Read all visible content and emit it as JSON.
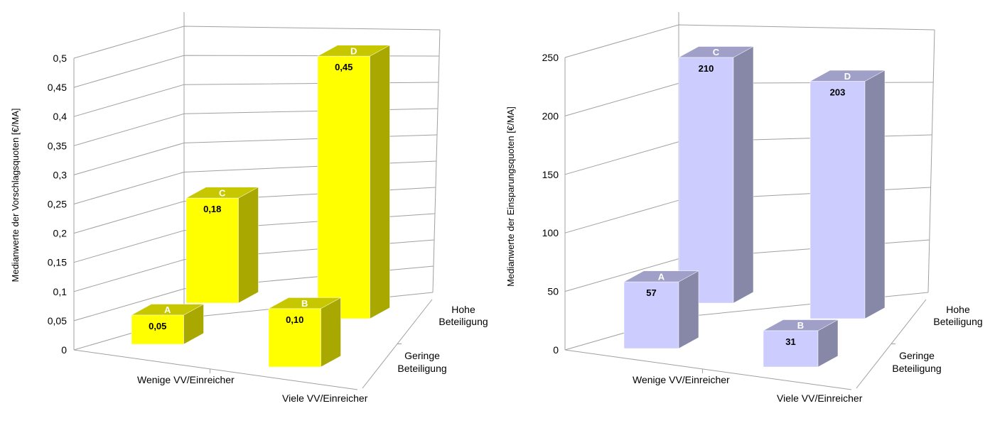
{
  "chart_data": [
    {
      "type": "bar",
      "title": "",
      "ylabel": "Medianwerte der Vorschlagsquoten [€/MA]",
      "x_categories": [
        "Wenige VV/Einreicher",
        "Viele VV/Einreicher"
      ],
      "depth_categories": [
        "Geringe Beteiligung",
        "Hohe Beteiligung"
      ],
      "ylim": [
        0,
        0.5
      ],
      "yticks": [
        "0",
        "0,05",
        "0,1",
        "0,15",
        "0,2",
        "0,25",
        "0,3",
        "0,35",
        "0,4",
        "0,45",
        "0,5"
      ],
      "grid": true,
      "color": "#ffff00",
      "bars": [
        {
          "label": "A",
          "x": "Wenige VV/Einreicher",
          "depth": "Geringe Beteiligung",
          "value": 0.05,
          "value_label": "0,05"
        },
        {
          "label": "B",
          "x": "Viele VV/Einreicher",
          "depth": "Geringe Beteiligung",
          "value": 0.1,
          "value_label": "0,10"
        },
        {
          "label": "C",
          "x": "Wenige VV/Einreicher",
          "depth": "Hohe Beteiligung",
          "value": 0.18,
          "value_label": "0,18"
        },
        {
          "label": "D",
          "x": "Viele VV/Einreicher",
          "depth": "Hohe Beteiligung",
          "value": 0.45,
          "value_label": "0,45"
        }
      ]
    },
    {
      "type": "bar",
      "title": "",
      "ylabel": "Medianwerte der Einsparungsquoten [€/MA]",
      "x_categories": [
        "Wenige VV/Einreicher",
        "Viele VV/Einreicher"
      ],
      "depth_categories": [
        "Geringe Beteiligung",
        "Hohe Beteiligung"
      ],
      "ylim": [
        0,
        250
      ],
      "yticks": [
        "0",
        "50",
        "100",
        "150",
        "200",
        "250"
      ],
      "grid": true,
      "color": "#ccccff",
      "bars": [
        {
          "label": "A",
          "x": "Wenige VV/Einreicher",
          "depth": "Geringe Beteiligung",
          "value": 57,
          "value_label": "57"
        },
        {
          "label": "B",
          "x": "Viele VV/Einreicher",
          "depth": "Geringe Beteiligung",
          "value": 31,
          "value_label": "31"
        },
        {
          "label": "C",
          "x": "Wenige VV/Einreicher",
          "depth": "Hohe Beteiligung",
          "value": 210,
          "value_label": "210"
        },
        {
          "label": "D",
          "x": "Viele VV/Einreicher",
          "depth": "Hohe Beteiligung",
          "value": 203,
          "value_label": "203"
        }
      ]
    }
  ]
}
